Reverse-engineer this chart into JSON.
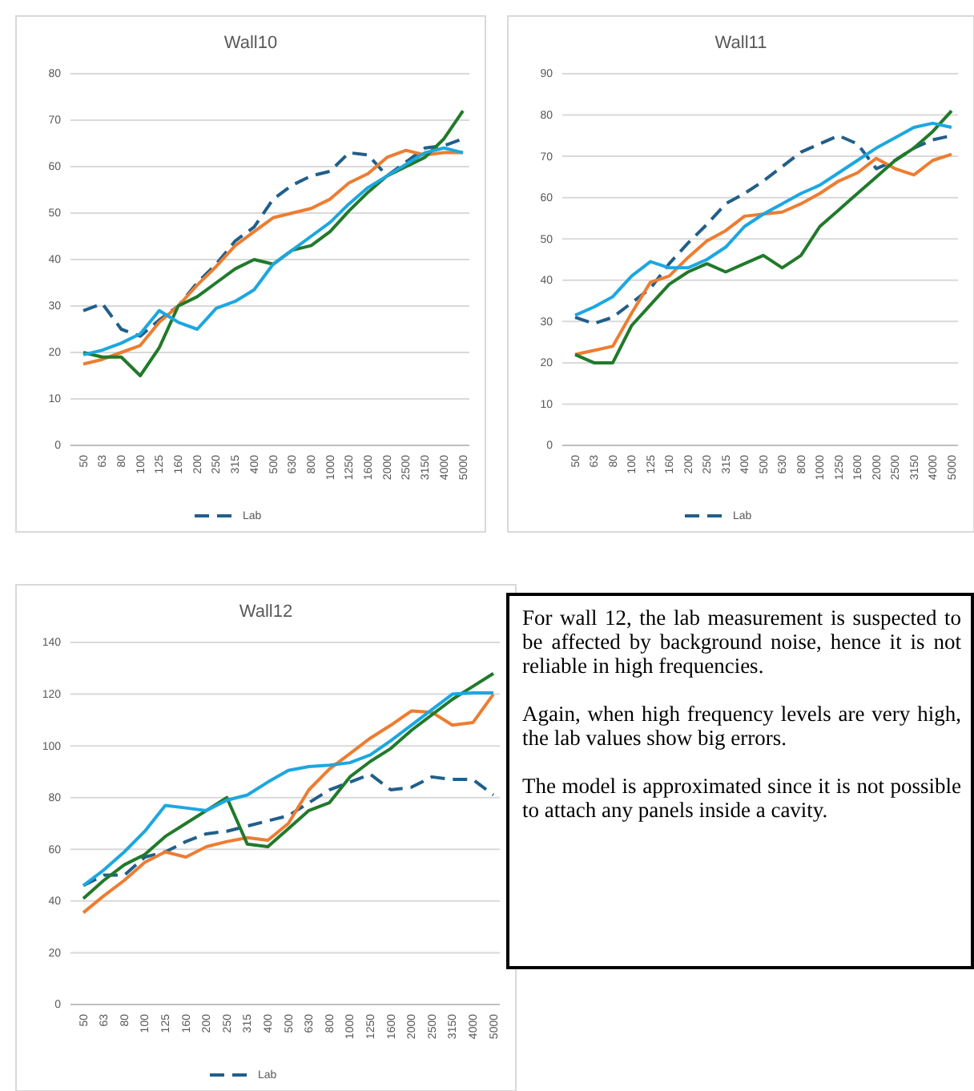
{
  "chart_data": [
    {
      "type": "line",
      "title": "Wall10",
      "categories": [
        "50",
        "63",
        "80",
        "100",
        "125",
        "160",
        "200",
        "250",
        "315",
        "400",
        "500",
        "630",
        "800",
        "1000",
        "1250",
        "1600",
        "2000",
        "2500",
        "3150",
        "4000",
        "5000"
      ],
      "ylim": [
        0,
        80
      ],
      "yticks": [
        0,
        10,
        20,
        30,
        40,
        50,
        60,
        70,
        80
      ],
      "grid": "y",
      "legend": "bottom",
      "series": [
        {
          "name": "Lab",
          "color": "#215f8a",
          "line_style": "dashed",
          "values": [
            29,
            30.5,
            25,
            23.5,
            27,
            30,
            35,
            39,
            44,
            47,
            53,
            56,
            58,
            59,
            63,
            62.5,
            58,
            61,
            64,
            64.5,
            66
          ]
        },
        {
          "color": "#ed7d31",
          "values": [
            17.5,
            18.5,
            20,
            21.5,
            26.5,
            30,
            34.5,
            38.5,
            43,
            46,
            49,
            50,
            51,
            53,
            56.5,
            58.5,
            62,
            63.5,
            62.5,
            63,
            63
          ]
        },
        {
          "color": "#217a2a",
          "values": [
            20,
            19,
            19,
            15,
            21,
            30,
            32,
            35,
            38,
            40,
            39,
            42,
            43,
            46,
            50.5,
            54.5,
            58,
            60,
            62,
            66,
            72
          ]
        },
        {
          "color": "#1ca7e0",
          "values": [
            19.5,
            20.5,
            22,
            24,
            29,
            26.5,
            25,
            29.5,
            31,
            33.5,
            39,
            42,
            45,
            48,
            52,
            55.5,
            58,
            60.5,
            63,
            64,
            63
          ]
        }
      ]
    },
    {
      "type": "line",
      "title": "Wall11",
      "categories": [
        "50",
        "63",
        "80",
        "100",
        "125",
        "160",
        "200",
        "250",
        "315",
        "400",
        "500",
        "630",
        "800",
        "1000",
        "1250",
        "1600",
        "2000",
        "2500",
        "3150",
        "4000",
        "5000"
      ],
      "ylim": [
        0,
        90
      ],
      "yticks": [
        0,
        10,
        20,
        30,
        40,
        50,
        60,
        70,
        80,
        90
      ],
      "grid": "y",
      "legend": "bottom",
      "series": [
        {
          "name": "Lab",
          "color": "#215f8a",
          "line_style": "dashed",
          "values": [
            31,
            29.5,
            31,
            34.5,
            38,
            44,
            49,
            53.5,
            58.5,
            61,
            64,
            67.5,
            71,
            73,
            75,
            73,
            67,
            69,
            72,
            74,
            75
          ]
        },
        {
          "color": "#ed7d31",
          "values": [
            22,
            23,
            24,
            32,
            39.5,
            41,
            45.5,
            49.5,
            52,
            55.5,
            56,
            56.5,
            58.5,
            61,
            64,
            66,
            69.5,
            67,
            65.5,
            69,
            70.5
          ]
        },
        {
          "color": "#217a2a",
          "values": [
            22,
            20,
            20,
            29,
            34,
            39,
            42,
            44,
            42,
            44,
            46,
            43,
            46,
            53,
            57,
            61,
            65,
            69,
            72,
            76,
            81
          ]
        },
        {
          "color": "#1ca7e0",
          "values": [
            31.5,
            33.5,
            36,
            41,
            44.5,
            43,
            43,
            45,
            48,
            53,
            56,
            58.5,
            61,
            63,
            66,
            69,
            72,
            74.5,
            77,
            78,
            77
          ]
        }
      ]
    },
    {
      "type": "line",
      "title": "Wall12",
      "categories": [
        "50",
        "63",
        "80",
        "100",
        "125",
        "160",
        "200",
        "250",
        "315",
        "400",
        "500",
        "630",
        "800",
        "1000",
        "1250",
        "1600",
        "2000",
        "2500",
        "3150",
        "4000",
        "5000"
      ],
      "ylim": [
        0,
        140
      ],
      "yticks": [
        0,
        20,
        40,
        60,
        80,
        100,
        120,
        140
      ],
      "grid": "y",
      "legend": "bottom",
      "series": [
        {
          "name": "Lab",
          "color": "#215f8a",
          "line_style": "dashed",
          "values": [
            46,
            50,
            50,
            57,
            59,
            63,
            66,
            67,
            69,
            71,
            73,
            78,
            83,
            86,
            89,
            83,
            84,
            88,
            87,
            87,
            81
          ]
        },
        {
          "color": "#ed7d31",
          "values": [
            35.5,
            42,
            48,
            55,
            59,
            57,
            61,
            63,
            64.5,
            63.5,
            70,
            83,
            91,
            97,
            103,
            108,
            113.5,
            113,
            108,
            109,
            120
          ]
        },
        {
          "color": "#217a2a",
          "values": [
            41,
            48,
            54,
            58,
            65,
            70,
            75,
            80,
            62,
            61,
            68,
            75,
            78,
            88,
            94,
            99,
            106,
            112,
            118,
            123,
            128
          ]
        },
        {
          "color": "#1ca7e0",
          "values": [
            46,
            52,
            59,
            67,
            77,
            76,
            75,
            79,
            81,
            86,
            90.5,
            92,
            92.5,
            93.5,
            96.5,
            102,
            108,
            114,
            120,
            120.5,
            120.5
          ]
        }
      ]
    },
    {
      "type": "other",
      "annotations": [
        "For wall 12, the lab measurement is suspected to be affected by background noise, hence it is not reliable in high frequencies.",
        "Again, when high frequency levels are very high, the lab values show big errors.",
        "The model is approximated since it is not possible to attach any panels inside a cavity."
      ]
    }
  ]
}
